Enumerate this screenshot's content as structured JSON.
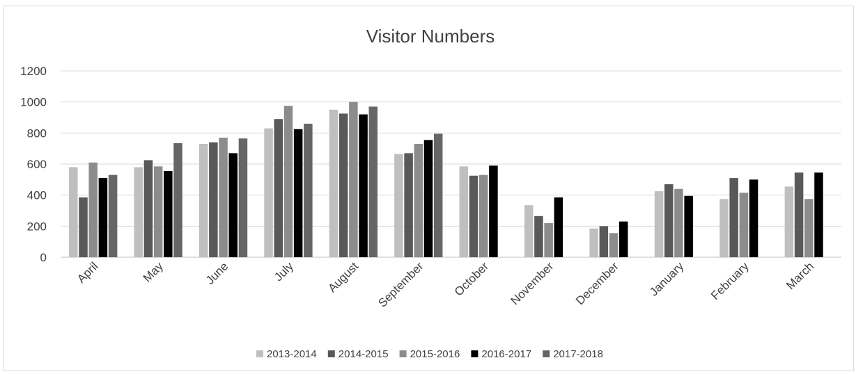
{
  "chart_data": {
    "type": "bar",
    "title": "Visitor Numbers",
    "xlabel": "",
    "ylabel": "",
    "ylim": [
      0,
      1200
    ],
    "yticks": [
      "0",
      "200",
      "400",
      "600",
      "800",
      "1000",
      "1200"
    ],
    "grid": true,
    "legend_position": "bottom",
    "categories": [
      "April",
      "May",
      "June",
      "July",
      "August",
      "September",
      "October",
      "November",
      "December",
      "January",
      "February",
      "March"
    ],
    "series": [
      {
        "name": "2013-2014",
        "color": "#bfbfbf",
        "values": [
          580,
          580,
          730,
          830,
          950,
          665,
          585,
          335,
          185,
          425,
          375,
          455
        ]
      },
      {
        "name": "2014-2015",
        "color": "#595959",
        "values": [
          385,
          625,
          740,
          890,
          925,
          670,
          525,
          265,
          200,
          470,
          510,
          545
        ]
      },
      {
        "name": "2015-2016",
        "color": "#8c8c8c",
        "values": [
          610,
          585,
          770,
          975,
          1000,
          730,
          530,
          220,
          155,
          440,
          415,
          375
        ]
      },
      {
        "name": "2016-2017",
        "color": "#000000",
        "values": [
          510,
          555,
          670,
          825,
          920,
          755,
          590,
          385,
          230,
          395,
          500,
          545
        ]
      },
      {
        "name": "2017-2018",
        "color": "#666666",
        "values": [
          530,
          735,
          765,
          860,
          970,
          795,
          null,
          null,
          null,
          null,
          null,
          null
        ]
      }
    ]
  }
}
